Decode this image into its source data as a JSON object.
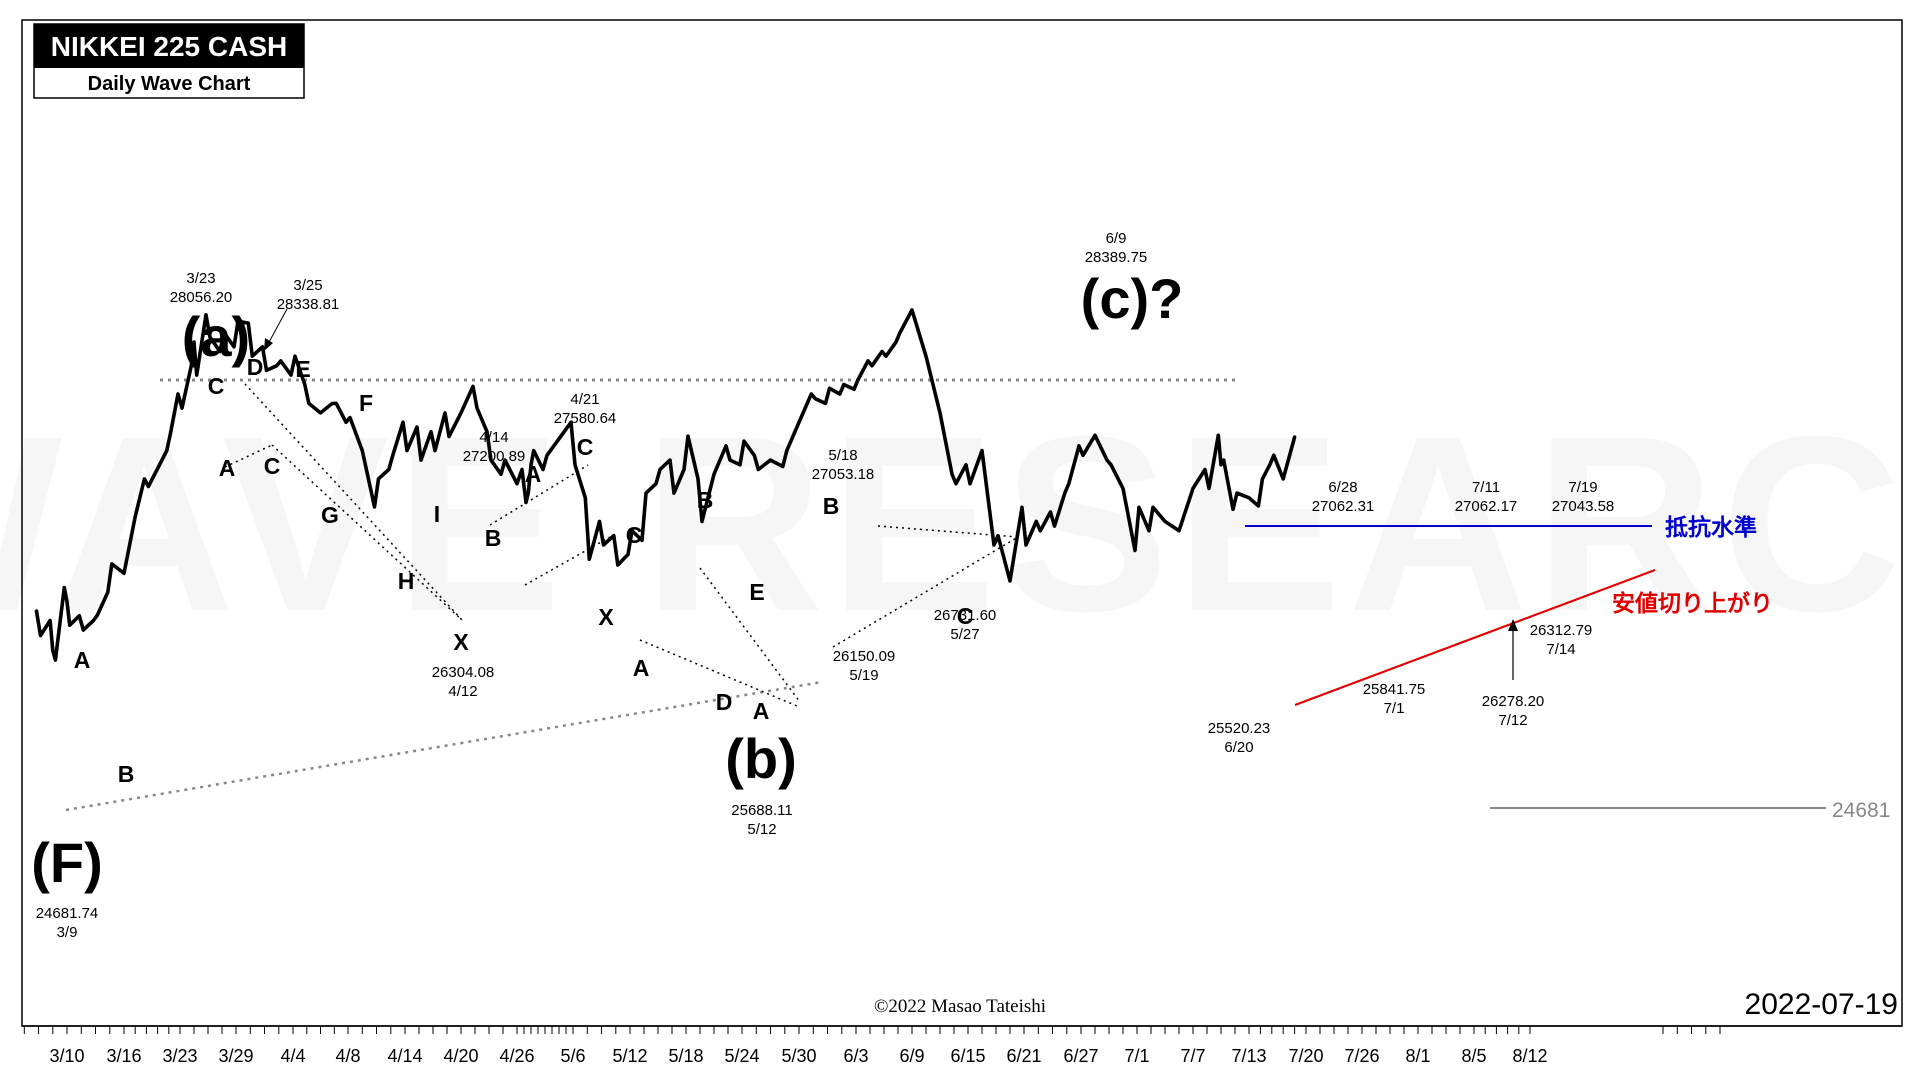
{
  "header": {
    "title": "NIKKEI 225 CASH",
    "subtitle": "Daily Wave Chart"
  },
  "footer": {
    "copyright": "©2022 Masao Tateishi",
    "date": "2022-07-19"
  },
  "watermark": "WAVE RESEARCH",
  "colors": {
    "price_line": "#000000",
    "resistance_line": "#0000cc",
    "support_line": "#e00000",
    "resistance_label": "#0000cc",
    "support_label": "#e00000",
    "level_line": "#888888"
  },
  "chart_data": {
    "type": "line",
    "title": "NIKKEI 225 CASH",
    "subtitle": "Daily Wave Chart",
    "x_ticks": [
      "3/10",
      "3/16",
      "3/23",
      "3/29",
      "4/4",
      "4/8",
      "4/14",
      "4/20",
      "4/26",
      "5/6",
      "5/12",
      "5/18",
      "5/24",
      "5/30",
      "6/3",
      "6/9",
      "6/15",
      "6/21",
      "6/27",
      "7/1",
      "7/7",
      "7/13",
      "7/20",
      "7/26",
      "8/1",
      "8/5",
      "8/12"
    ],
    "grid": false,
    "series": [
      {
        "values": [
          [
            "3/8",
            25200
          ],
          [
            "3/8",
            24940
          ],
          [
            "3/9",
            25100
          ],
          [
            "3/9",
            24780
          ],
          [
            "3/9",
            24681.74
          ],
          [
            "3/10",
            25450
          ],
          [
            "3/10",
            25300
          ],
          [
            "3/10",
            25050
          ],
          [
            "3/11",
            25150
          ],
          [
            "3/11",
            25000
          ],
          [
            "3/14",
            25100
          ],
          [
            "3/14",
            25160
          ],
          [
            "3/15",
            25400
          ],
          [
            "3/15",
            25700
          ],
          [
            "3/16",
            25600
          ],
          [
            "3/17",
            26200
          ],
          [
            "3/18",
            26600
          ],
          [
            "3/18",
            26520
          ],
          [
            "3/22",
            26900
          ],
          [
            "3/22",
            27100
          ],
          [
            "3/23",
            27500
          ],
          [
            "3/23",
            27350
          ],
          [
            "3/24",
            27800
          ],
          [
            "3/24",
            28050
          ],
          [
            "3/24",
            27700
          ],
          [
            "3/25",
            28338.81
          ],
          [
            "3/25",
            28100
          ],
          [
            "3/28",
            27950
          ],
          [
            "3/28",
            28150
          ],
          [
            "3/29",
            28000
          ],
          [
            "3/29",
            28270
          ],
          [
            "3/30",
            28250
          ],
          [
            "3/30",
            27900
          ],
          [
            "3/31",
            28000
          ],
          [
            "3/31",
            27750
          ],
          [
            "4/1",
            27800
          ],
          [
            "4/1",
            27850
          ],
          [
            "4/4",
            27700
          ],
          [
            "4/4",
            27900
          ],
          [
            "4/5",
            27600
          ],
          [
            "4/5",
            27400
          ],
          [
            "4/6",
            27300
          ],
          [
            "4/7",
            27400
          ],
          [
            "4/7",
            27400
          ],
          [
            "4/8",
            27200
          ],
          [
            "4/8",
            27250
          ],
          [
            "4/11",
            26900
          ],
          [
            "4/12",
            26304.08
          ],
          [
            "4/12",
            26600
          ],
          [
            "4/13",
            26700
          ],
          [
            "4/13",
            26850
          ],
          [
            "4/14",
            27200.89
          ],
          [
            "4/14",
            26900
          ],
          [
            "4/15",
            27150
          ],
          [
            "4/15",
            26800
          ],
          [
            "4/18",
            27100
          ],
          [
            "4/18",
            26900
          ],
          [
            "4/19",
            27300
          ],
          [
            "4/19",
            27050
          ],
          [
            "4/20",
            27300
          ],
          [
            "4/21",
            27580.64
          ],
          [
            "4/21",
            27350
          ],
          [
            "4/22",
            27100
          ],
          [
            "4/22",
            26800
          ],
          [
            "4/25",
            26650
          ],
          [
            "4/25",
            26800
          ],
          [
            "4/26",
            26550
          ],
          [
            "4/27",
            26700
          ],
          [
            "4/27",
            26350
          ],
          [
            "4/28",
            26450
          ],
          [
            "4/28",
            26750
          ],
          [
            "4/28",
            26900
          ],
          [
            "5/2",
            26700
          ],
          [
            "5/2",
            26850
          ],
          [
            "5/6",
            27200
          ],
          [
            "5/6",
            26750
          ],
          [
            "5/9",
            26400
          ],
          [
            "5/9",
            25750
          ],
          [
            "5/10",
            26150
          ],
          [
            "5/10",
            25900
          ],
          [
            "5/11",
            26000
          ],
          [
            "5/11",
            25688.11
          ],
          [
            "5/12",
            25800
          ],
          [
            "5/12",
            26050
          ],
          [
            "5/13",
            25950
          ],
          [
            "5/13",
            26450
          ],
          [
            "5/16",
            26550
          ],
          [
            "5/16",
            26700
          ],
          [
            "5/17",
            26800
          ],
          [
            "5/17",
            26450
          ],
          [
            "5/18",
            26700
          ],
          [
            "5/18",
            27053.18
          ],
          [
            "5/19",
            26600
          ],
          [
            "5/19",
            26150.09
          ],
          [
            "5/20",
            26650
          ],
          [
            "5/23",
            26950
          ],
          [
            "5/23",
            26800
          ],
          [
            "5/24",
            26750
          ],
          [
            "5/24",
            27000
          ],
          [
            "5/25",
            26850
          ],
          [
            "5/25",
            26700
          ],
          [
            "5/26",
            26800
          ],
          [
            "5/27",
            26731.6
          ],
          [
            "5/27",
            26900
          ],
          [
            "5/30",
            27200
          ],
          [
            "5/31",
            27500
          ],
          [
            "5/31",
            27450
          ],
          [
            "6/1",
            27400
          ],
          [
            "6/1",
            27560
          ],
          [
            "6/2",
            27500
          ],
          [
            "6/2",
            27600
          ],
          [
            "6/3",
            27550
          ],
          [
            "6/3",
            27650
          ],
          [
            "6/6",
            27850
          ],
          [
            "6/6",
            27800
          ],
          [
            "6/7",
            27950
          ],
          [
            "6/7",
            27900
          ],
          [
            "6/8",
            28050
          ],
          [
            "6/8",
            28150
          ],
          [
            "6/9",
            28389.75
          ],
          [
            "6/10",
            27900
          ],
          [
            "6/13",
            27300
          ],
          [
            "6/14",
            26650
          ],
          [
            "6/14",
            26550
          ],
          [
            "6/15",
            26750
          ],
          [
            "6/15",
            26550
          ],
          [
            "6/16",
            26900
          ],
          [
            "6/17",
            25900
          ],
          [
            "6/17",
            26000
          ],
          [
            "6/20",
            25520.23
          ],
          [
            "6/21",
            26300
          ],
          [
            "6/21",
            25900
          ],
          [
            "6/22",
            26150
          ],
          [
            "6/22",
            26050
          ],
          [
            "6/23",
            26250
          ],
          [
            "6/23",
            26100
          ],
          [
            "6/24",
            26450
          ],
          [
            "6/24",
            26550
          ],
          [
            "6/27",
            26950
          ],
          [
            "6/27",
            26850
          ],
          [
            "6/28",
            27062.31
          ],
          [
            "6/29",
            26800
          ],
          [
            "6/29",
            26750
          ],
          [
            "6/30",
            26500
          ],
          [
            "7/1",
            25841.75
          ],
          [
            "7/1",
            26300
          ],
          [
            "7/4",
            26050
          ],
          [
            "7/4",
            26300
          ],
          [
            "7/5",
            26150
          ],
          [
            "7/6",
            26050
          ],
          [
            "7/7",
            26500
          ],
          [
            "7/8",
            26700
          ],
          [
            "7/8",
            26500
          ],
          [
            "7/11",
            27062.17
          ],
          [
            "7/11",
            26750
          ],
          [
            "7/11",
            26800
          ],
          [
            "7/12",
            26278.2
          ],
          [
            "7/12",
            26450
          ],
          [
            "7/13",
            26400
          ],
          [
            "7/14",
            26312.79
          ],
          [
            "7/14",
            26600
          ],
          [
            "7/15",
            26750
          ],
          [
            "7/15",
            26850
          ],
          [
            "7/18",
            26600
          ],
          [
            "7/19",
            27043.58
          ]
        ]
      }
    ],
    "price_labels": [
      {
        "date": "3/23",
        "value": "28056.20"
      },
      {
        "date": "3/25",
        "value": "28338.81"
      },
      {
        "date": "4/14",
        "value": "27200.89"
      },
      {
        "date": "4/21",
        "value": "27580.64"
      },
      {
        "date": "5/18",
        "value": "27053.18"
      },
      {
        "date": "6/9",
        "value": "28389.75"
      },
      {
        "date": "6/28",
        "value": "27062.31"
      },
      {
        "date": "7/11",
        "value": "27062.17"
      },
      {
        "date": "7/19",
        "value": "27043.58"
      },
      {
        "date": "3/9",
        "value": "24681.74"
      },
      {
        "date": "4/12",
        "value": "26304.08"
      },
      {
        "date": "5/12",
        "value": "25688.11"
      },
      {
        "date": "5/19",
        "value": "26150.09"
      },
      {
        "date": "5/27",
        "value": "26731.60"
      },
      {
        "date": "6/20",
        "value": "25520.23"
      },
      {
        "date": "7/1",
        "value": "25841.75"
      },
      {
        "date": "7/12",
        "value": "26278.20"
      },
      {
        "date": "7/14",
        "value": "26312.79"
      }
    ],
    "wave_labels": {
      "big": [
        "(a)",
        "(b)",
        "(c)?",
        "(F)"
      ],
      "small": [
        "A",
        "B",
        "C",
        "D",
        "E",
        "F",
        "G",
        "H",
        "I",
        "X",
        "A",
        "B",
        "C",
        "A",
        "X",
        "B",
        "C",
        "D",
        "E",
        "A",
        "B",
        "C"
      ]
    },
    "annotations": {
      "resistance_label": "抵抗水準",
      "support_label": "安値切り上がり",
      "level_value": "24681"
    }
  }
}
